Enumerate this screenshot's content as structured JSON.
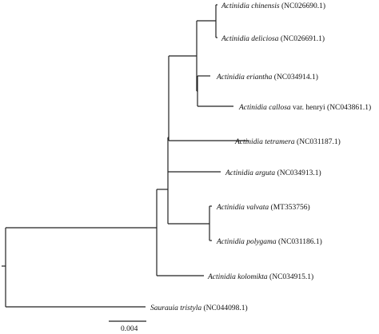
{
  "tree": {
    "taxa": [
      {
        "id": "t1",
        "species": "Actinidia chinensis",
        "rest": "(NC026690.1)"
      },
      {
        "id": "t2",
        "species": "Actinidia deliciosa",
        "rest": "(NC026691.1)"
      },
      {
        "id": "t3",
        "species": "Actinidia eriantha",
        "rest": "(NC034914.1)"
      },
      {
        "id": "t4",
        "species": "Actinidia callosa",
        "rest": "var. henryi (NC043861.1)"
      },
      {
        "id": "t5",
        "species": "Actinidia tetramera",
        "rest": "(NC031187.1)"
      },
      {
        "id": "t6",
        "species": "Actinidia arguta",
        "rest": "(NC034913.1)"
      },
      {
        "id": "t7",
        "species": "Actinidia valvata",
        "rest": "(MT353756)"
      },
      {
        "id": "t8",
        "species": "Actinidia polygama",
        "rest": "(NC031186.1)"
      },
      {
        "id": "t9",
        "species": "Actinidia kolomikta",
        "rest": "(NC034915.1)"
      },
      {
        "id": "t10",
        "species": "Saurauia tristyla",
        "rest": "(NC044098.1)"
      }
    ],
    "scale_bar_label": "0.004"
  }
}
